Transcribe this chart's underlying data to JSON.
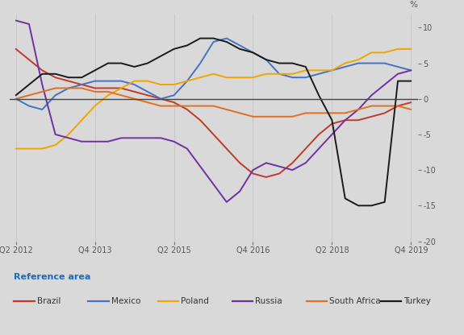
{
  "background_color": "#d9d9d9",
  "ylabel": "%",
  "x_tick_labels": [
    "Q2 2012",
    "Q4 2013",
    "Q2 2015",
    "Q4 2016",
    "Q2 2018",
    "Q4 2019"
  ],
  "x_tick_positions": [
    0,
    6,
    12,
    18,
    24,
    30
  ],
  "ylim": [
    -20,
    12
  ],
  "yticks": [
    10,
    5,
    0,
    -5,
    -10,
    -15,
    -20
  ],
  "reference_label": "Reference area",
  "series": {
    "Brazil": {
      "color": "#c0392b",
      "values": [
        7,
        5.5,
        4,
        3,
        2.5,
        2,
        1.5,
        1.5,
        1.5,
        1,
        0.5,
        0,
        -0.5,
        -1.5,
        -3,
        -5,
        -7,
        -9,
        -10.5,
        -11,
        -10.5,
        -9,
        -7,
        -5,
        -3.5,
        -3,
        -3,
        -2.5,
        -2,
        -1,
        -0.5
      ]
    },
    "Mexico": {
      "color": "#4472c4",
      "values": [
        0,
        -1,
        -1.5,
        0.5,
        1.5,
        2,
        2.5,
        2.5,
        2.5,
        2,
        1,
        0,
        0.5,
        2.5,
        5,
        8,
        8.5,
        7.5,
        6.5,
        5.5,
        3.5,
        3,
        3,
        3.5,
        4,
        4.5,
        5,
        5,
        5,
        4.5,
        4
      ]
    },
    "Poland": {
      "color": "#f0a500",
      "values": [
        -7,
        -7,
        -7,
        -6.5,
        -5,
        -3,
        -1,
        0.5,
        1.5,
        2.5,
        2.5,
        2,
        2,
        2.5,
        3,
        3.5,
        3,
        3,
        3,
        3.5,
        3.5,
        3.5,
        4,
        4,
        4,
        5,
        5.5,
        6.5,
        6.5,
        7,
        7
      ]
    },
    "Russia": {
      "color": "#7030a0",
      "values": [
        11,
        10.5,
        2,
        -5,
        -5.5,
        -6,
        -6,
        -6,
        -5.5,
        -5.5,
        -5.5,
        -5.5,
        -6,
        -7,
        -9.5,
        -12,
        -14.5,
        -13,
        -10,
        -9,
        -9.5,
        -10,
        -9,
        -7,
        -5,
        -3,
        -1.5,
        0.5,
        2,
        3.5,
        4
      ]
    },
    "South Africa": {
      "color": "#e07020",
      "values": [
        0,
        0.5,
        1,
        1.5,
        1.5,
        1.5,
        1,
        1,
        0.5,
        0,
        -0.5,
        -1,
        -1,
        -1,
        -1,
        -1,
        -1.5,
        -2,
        -2.5,
        -2.5,
        -2.5,
        -2.5,
        -2,
        -2,
        -2,
        -2,
        -1.5,
        -1,
        -1,
        -1,
        -1.5
      ]
    },
    "Turkey": {
      "color": "#1a1a1a",
      "values": [
        0.5,
        2,
        3.5,
        3.5,
        3,
        3,
        4,
        5,
        5,
        4.5,
        5,
        6,
        7,
        7.5,
        8.5,
        8.5,
        8,
        7,
        6.5,
        5.5,
        5,
        5,
        4.5,
        0.5,
        -3,
        -14,
        -15,
        -15,
        -14.5,
        2.5,
        2.5
      ]
    }
  }
}
